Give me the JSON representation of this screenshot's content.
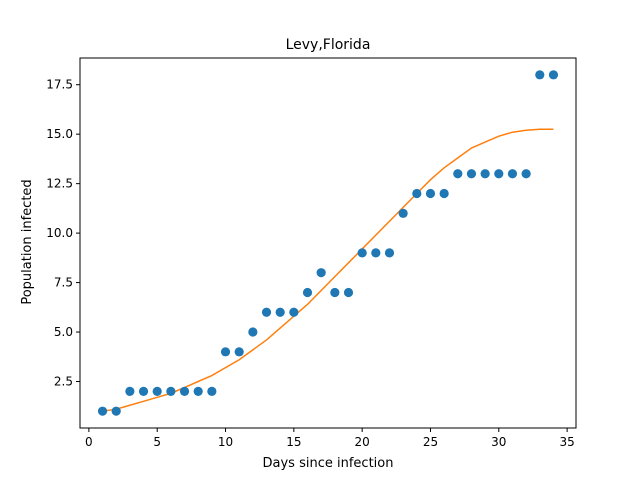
{
  "chart_data": {
    "type": "scatter",
    "title": "Levy,Florida",
    "xlabel": "Days since infection",
    "ylabel": "Population infected",
    "xlim": [
      -0.65,
      35.65
    ],
    "ylim": [
      0.15,
      18.85
    ],
    "xticks": [
      0,
      5,
      10,
      15,
      20,
      25,
      30,
      35
    ],
    "xtick_labels": [
      "0",
      "5",
      "10",
      "15",
      "20",
      "25",
      "30",
      "35"
    ],
    "yticks": [
      2.5,
      5.0,
      7.5,
      10.0,
      12.5,
      15.0,
      17.5
    ],
    "ytick_labels": [
      "2.5",
      "5.0",
      "7.5",
      "10.0",
      "12.5",
      "15.0",
      "17.5"
    ],
    "grid": false,
    "series": [
      {
        "type": "scatter",
        "color": "#1f77b4",
        "x": [
          1,
          2,
          3,
          4,
          5,
          6,
          7,
          8,
          9,
          10,
          11,
          12,
          13,
          14,
          15,
          16,
          17,
          18,
          19,
          20,
          21,
          22,
          23,
          24,
          25,
          26,
          27,
          28,
          29,
          30,
          31,
          32,
          33,
          34
        ],
        "y": [
          1,
          1,
          2,
          2,
          2,
          2,
          2,
          2,
          2,
          4,
          4,
          5,
          6,
          6,
          6,
          7,
          8,
          7,
          7,
          9,
          9,
          9,
          11,
          12,
          12,
          12,
          13,
          13,
          13,
          13,
          13,
          13,
          18,
          18
        ]
      },
      {
        "type": "line",
        "color": "#ff7f0e",
        "x": [
          1,
          2,
          3,
          4,
          5,
          6,
          7,
          8,
          9,
          10,
          11,
          12,
          13,
          14,
          15,
          16,
          17,
          18,
          19,
          20,
          21,
          22,
          23,
          24,
          25,
          26,
          27,
          28,
          29,
          30,
          31,
          32,
          33,
          34
        ],
        "y": [
          1.0,
          1.1,
          1.3,
          1.5,
          1.7,
          1.9,
          2.2,
          2.5,
          2.8,
          3.2,
          3.6,
          4.1,
          4.6,
          5.2,
          5.8,
          6.4,
          7.1,
          7.8,
          8.5,
          9.2,
          9.9,
          10.6,
          11.3,
          12.0,
          12.7,
          13.3,
          13.8,
          14.3,
          14.6,
          14.9,
          15.1,
          15.2,
          15.25,
          15.25
        ]
      }
    ]
  }
}
